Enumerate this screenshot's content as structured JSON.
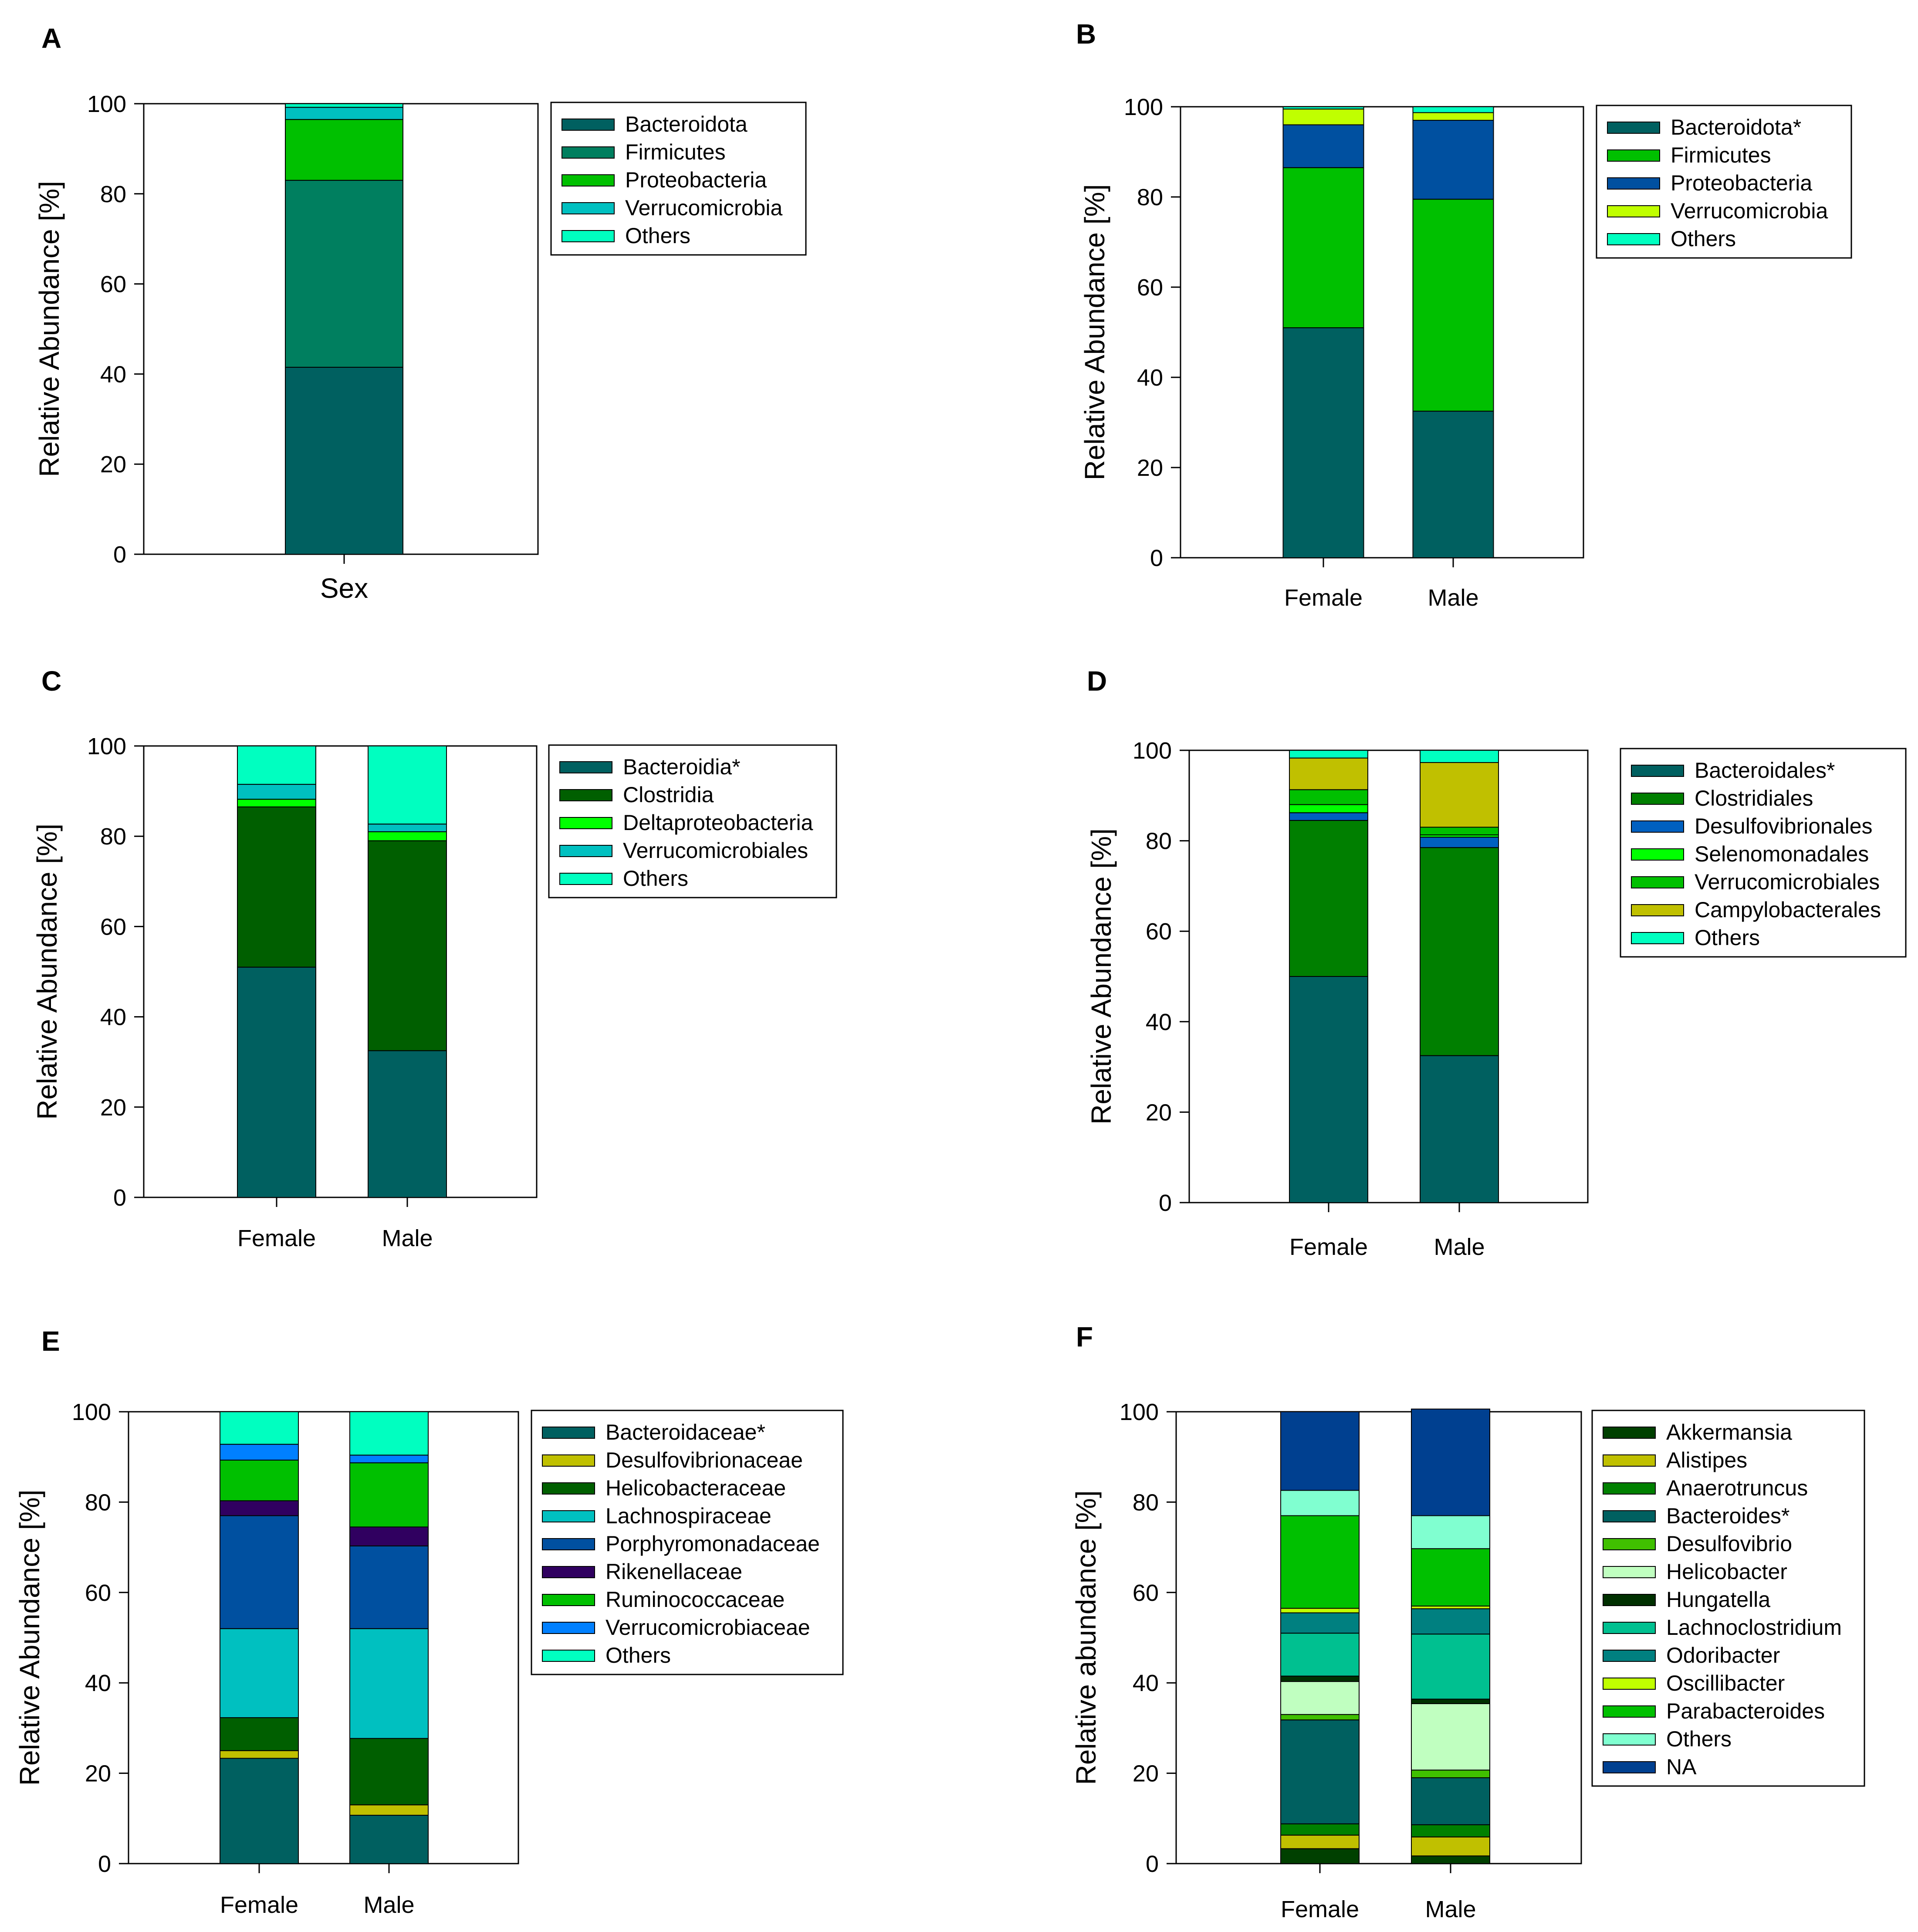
{
  "chart_data": [
    {
      "panel": "A",
      "type": "bar",
      "stacked": true,
      "categories": [
        ""
      ],
      "xlabel": "Sex",
      "ylabel": "Relative Abundance [%]",
      "ylim": [
        0,
        100
      ],
      "yticks": [
        "0",
        "20",
        "40",
        "60",
        "80",
        "100"
      ],
      "legend_position": "top-right",
      "series": [
        {
          "name": "Bacteroidota",
          "color": "#006060",
          "values": [
            41.5
          ]
        },
        {
          "name": "Firmicutes",
          "color": "#007f5f",
          "values": [
            41.5
          ]
        },
        {
          "name": "Proteobacteria",
          "color": "#00c000",
          "values": [
            13.5
          ]
        },
        {
          "name": "Verrucomicrobia",
          "color": "#00c0c0",
          "values": [
            2.7
          ]
        },
        {
          "name": "Others",
          "color": "#00ffc0",
          "values": [
            0.8
          ]
        }
      ]
    },
    {
      "panel": "B",
      "type": "bar",
      "stacked": true,
      "categories": [
        "Female",
        "Male"
      ],
      "xlabel": "",
      "ylabel": "Relative Abundance [%]",
      "ylim": [
        0,
        100
      ],
      "yticks": [
        "0",
        "20",
        "40",
        "60",
        "80",
        "100"
      ],
      "legend_position": "top-right",
      "series": [
        {
          "name": "Bacteroidota*",
          "color": "#006060",
          "values": [
            51,
            32.5
          ]
        },
        {
          "name": "Firmicutes",
          "color": "#00c000",
          "values": [
            35.5,
            47
          ]
        },
        {
          "name": "Proteobacteria",
          "color": "#0050a0",
          "values": [
            9.5,
            17.5
          ]
        },
        {
          "name": "Verrucomicrobia",
          "color": "#c0ff00",
          "values": [
            3.5,
            1.7
          ]
        },
        {
          "name": "Others",
          "color": "#00ffc0",
          "values": [
            0.5,
            1.3
          ]
        }
      ]
    },
    {
      "panel": "C",
      "type": "bar",
      "stacked": true,
      "categories": [
        "Female",
        "Male"
      ],
      "xlabel": "",
      "ylabel": "Relative Abundance [%]",
      "ylim": [
        0,
        100
      ],
      "yticks": [
        "0",
        "20",
        "40",
        "60",
        "80",
        "100"
      ],
      "legend_position": "top-right",
      "series": [
        {
          "name": "Bacteroidia*",
          "color": "#006060",
          "values": [
            51,
            32.5
          ]
        },
        {
          "name": "Clostridia",
          "color": "#005f00",
          "values": [
            35.5,
            46.5
          ]
        },
        {
          "name": "Deltaproteobacteria",
          "color": "#00ff00",
          "values": [
            1.7,
            2
          ]
        },
        {
          "name": "Verrucomicrobiales",
          "color": "#00c0c0",
          "values": [
            3.3,
            1.7
          ]
        },
        {
          "name": "Others",
          "color": "#00ffc0",
          "values": [
            8.5,
            17.3
          ]
        }
      ]
    },
    {
      "panel": "D",
      "type": "bar",
      "stacked": true,
      "categories": [
        "Female",
        "Male"
      ],
      "xlabel": "",
      "ylabel": "Relative Abundance [%]",
      "ylim": [
        0,
        100
      ],
      "yticks": [
        "0",
        "20",
        "40",
        "60",
        "80",
        "100"
      ],
      "legend_position": "top-right",
      "series": [
        {
          "name": "Bacteroidales*",
          "color": "#006060",
          "values": [
            50,
            32.5
          ]
        },
        {
          "name": "Clostridiales",
          "color": "#007f00",
          "values": [
            34.5,
            46
          ]
        },
        {
          "name": "Desulfovibrionales",
          "color": "#0060c0",
          "values": [
            1.7,
            2.3
          ]
        },
        {
          "name": "Selenomonadales",
          "color": "#00ff00",
          "values": [
            1.8,
            0.5
          ]
        },
        {
          "name": "Verrucomicrobiales",
          "color": "#00c000",
          "values": [
            3.3,
            1.7
          ]
        },
        {
          "name": "Campylobacterales",
          "color": "#c0c000",
          "values": [
            7,
            14.3
          ]
        },
        {
          "name": "Others",
          "color": "#00ffc0",
          "values": [
            1.7,
            2.7
          ]
        }
      ]
    },
    {
      "panel": "E",
      "type": "bar",
      "stacked": true,
      "categories": [
        "Female",
        "Male"
      ],
      "xlabel": "",
      "ylabel": "Relative Abundance [%]",
      "ylim": [
        0,
        100
      ],
      "yticks": [
        "0",
        "20",
        "40",
        "60",
        "80",
        "100"
      ],
      "legend_position": "top-right",
      "series": [
        {
          "name": "Bacteroidaceae*",
          "color": "#006060",
          "values": [
            23.3,
            10.7
          ]
        },
        {
          "name": "Desulfovibrionaceae",
          "color": "#c0c000",
          "values": [
            1.7,
            2.3
          ]
        },
        {
          "name": "Helicobacteraceae",
          "color": "#005f00",
          "values": [
            7.3,
            14.7
          ]
        },
        {
          "name": "Lachnospiraceae",
          "color": "#00c0c0",
          "values": [
            19.7,
            24.3
          ]
        },
        {
          "name": "Porphyromonadaceae",
          "color": "#0050a0",
          "values": [
            25,
            18.3
          ]
        },
        {
          "name": "Rikenellaceae",
          "color": "#300060",
          "values": [
            3.3,
            4.2
          ]
        },
        {
          "name": "Ruminococcaceae",
          "color": "#00c000",
          "values": [
            9,
            14.2
          ]
        },
        {
          "name": "Verrucomicrobiaceae",
          "color": "#0080ff",
          "values": [
            3.5,
            1.7
          ]
        },
        {
          "name": "Others",
          "color": "#00ffc0",
          "values": [
            7.2,
            9.6
          ]
        }
      ]
    },
    {
      "panel": "F",
      "type": "bar",
      "stacked": true,
      "categories": [
        "Female",
        "Male"
      ],
      "xlabel": "",
      "ylabel": "Relative abundance [%]",
      "ylim": [
        0,
        100
      ],
      "yticks": [
        "0",
        "20",
        "40",
        "60",
        "80",
        "100"
      ],
      "legend_position": "top-right",
      "series": [
        {
          "name": "Akkermansia",
          "color": "#004000",
          "values": [
            3.3,
            1.7
          ]
        },
        {
          "name": "Alistipes",
          "color": "#c0c000",
          "values": [
            3,
            4.2
          ]
        },
        {
          "name": "Anaerotruncus",
          "color": "#008000",
          "values": [
            2.5,
            2.7
          ]
        },
        {
          "name": "Bacteroides*",
          "color": "#006060",
          "values": [
            23,
            10.4
          ]
        },
        {
          "name": "Desulfovibrio",
          "color": "#40c000",
          "values": [
            1.2,
            1.7
          ]
        },
        {
          "name": "Helicobacter",
          "color": "#c0ffc0",
          "values": [
            7.3,
            14.7
          ]
        },
        {
          "name": "Hungatella",
          "color": "#003000",
          "values": [
            1.2,
            1
          ]
        },
        {
          "name": "Lachnoclostridium",
          "color": "#00c090",
          "values": [
            9.5,
            14.4
          ]
        },
        {
          "name": "Odoribacter",
          "color": "#008080",
          "values": [
            4.5,
            5.6
          ]
        },
        {
          "name": "Oscillibacter",
          "color": "#c0ff00",
          "values": [
            1,
            0.6
          ]
        },
        {
          "name": "Parabacteroides",
          "color": "#00c000",
          "values": [
            20.5,
            12.7
          ]
        },
        {
          "name": "Others",
          "color": "#80ffd0",
          "values": [
            5.6,
            7.3
          ]
        },
        {
          "name": "NA",
          "color": "#004090",
          "values": [
            17.4,
            23.6
          ]
        }
      ]
    }
  ]
}
